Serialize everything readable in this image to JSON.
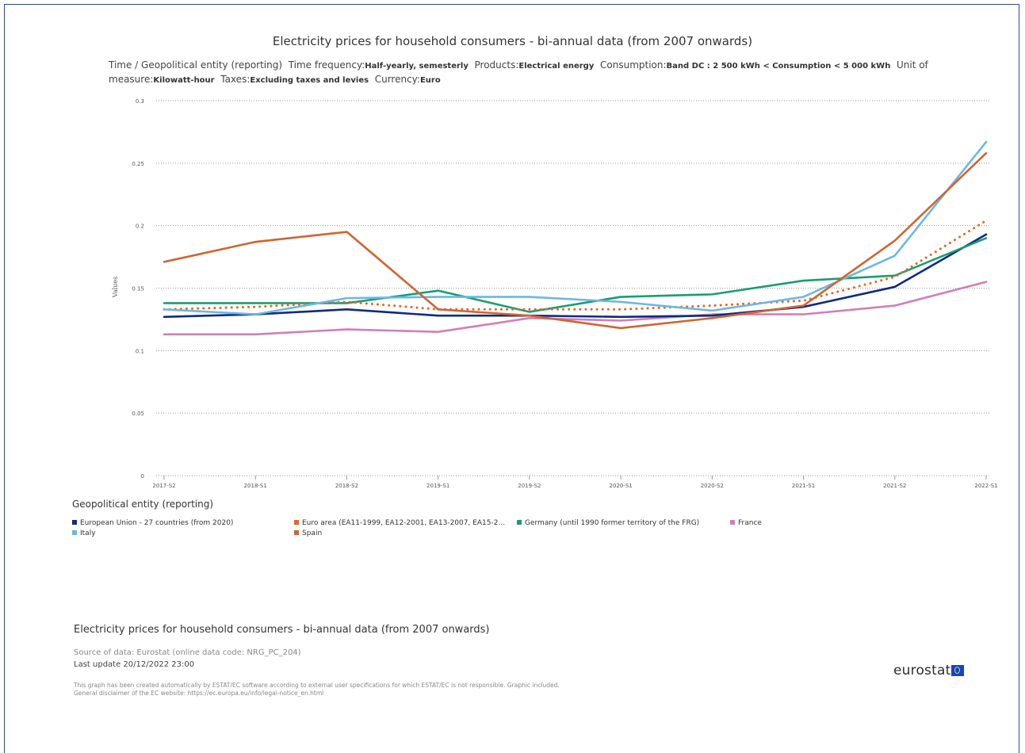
{
  "title": "Electricity prices for household consumers - bi-annual data (from 2007 onwards)",
  "subtitle": {
    "dim_label": "Time / Geopolitical entity (reporting)",
    "items": [
      {
        "key": "Time frequency:",
        "value": "Half-yearly, semesterly"
      },
      {
        "key": "Products:",
        "value": "Electrical energy"
      },
      {
        "key": "Consumption:",
        "value": "Band DC : 2 500 kWh < Consumption < 5 000 kWh"
      },
      {
        "key": "Unit of measure:",
        "value": "Kilowatt-hour"
      },
      {
        "key": "Taxes:",
        "value": "Excluding taxes and levies"
      },
      {
        "key": "Currency:",
        "value": "Euro"
      }
    ]
  },
  "legend_title": "Geopolitical entity (reporting)",
  "footer": {
    "title": "Electricity prices for household consumers - bi-annual data (from 2007 onwards)",
    "source": "Source of data: Eurostat (online data code: NRG_PC_204)",
    "last_update": "Last update 20/12/2022 23:00",
    "disclaimer_line1": "This graph has been created automatically by ESTAT/EC software according to external user specifications for which ESTAT/EC is not responsible. Graphic included.",
    "disclaimer_line2": "General disclaimer of the EC website: https://ec.europa.eu/info/legal-notice_en.html",
    "logo_text": "eurostat"
  },
  "chart_data": {
    "type": "line",
    "ylabel": "Values",
    "ylim": [
      0,
      0.3
    ],
    "yticks": [
      0,
      0.05,
      0.1,
      0.15,
      0.2,
      0.25,
      0.3
    ],
    "ytick_labels": [
      "0",
      "0.05",
      "0.1",
      "0.15",
      "0.2",
      "0.25",
      "0.3"
    ],
    "grid": "horizontal dotted",
    "legend_position": "bottom",
    "x": [
      "2017-S2",
      "2018-S1",
      "2018-S2",
      "2019-S1",
      "2019-S2",
      "2020-S1",
      "2020-S2",
      "2021-S1",
      "2021-S2",
      "2022-S1"
    ],
    "series": [
      {
        "name": "European Union - 27 countries (from 2020)",
        "color": "#0e2a84",
        "dash": false,
        "values": [
          0.127,
          0.129,
          0.133,
          0.128,
          0.128,
          0.127,
          0.128,
          0.135,
          0.151,
          0.193
        ]
      },
      {
        "name": "Euro area (EA11-1999, EA12-2001, EA13-2007, EA15-2...",
        "color": "#e06826",
        "dash": true,
        "values": [
          0.133,
          0.135,
          0.139,
          0.133,
          0.133,
          0.133,
          0.136,
          0.14,
          0.159,
          0.204
        ]
      },
      {
        "name": "Germany (until 1990 former territory of the FRG)",
        "color": "#1a9e6e",
        "dash": false,
        "values": [
          0.138,
          0.138,
          0.138,
          0.148,
          0.131,
          0.143,
          0.145,
          0.156,
          0.16,
          0.19
        ]
      },
      {
        "name": "France",
        "color": "#d27eb8",
        "dash": false,
        "values": [
          0.113,
          0.113,
          0.117,
          0.115,
          0.126,
          0.124,
          0.129,
          0.129,
          0.136,
          0.155
        ]
      },
      {
        "name": "Italy",
        "color": "#6cb7e6",
        "dash": false,
        "values": [
          0.133,
          0.129,
          0.142,
          0.143,
          0.143,
          0.139,
          0.132,
          0.143,
          0.176,
          0.267
        ]
      },
      {
        "name": "Spain",
        "color": "#cf6530",
        "dash": false,
        "values": [
          0.171,
          0.187,
          0.195,
          0.133,
          0.128,
          0.118,
          0.126,
          0.136,
          0.188,
          0.258
        ]
      }
    ]
  }
}
